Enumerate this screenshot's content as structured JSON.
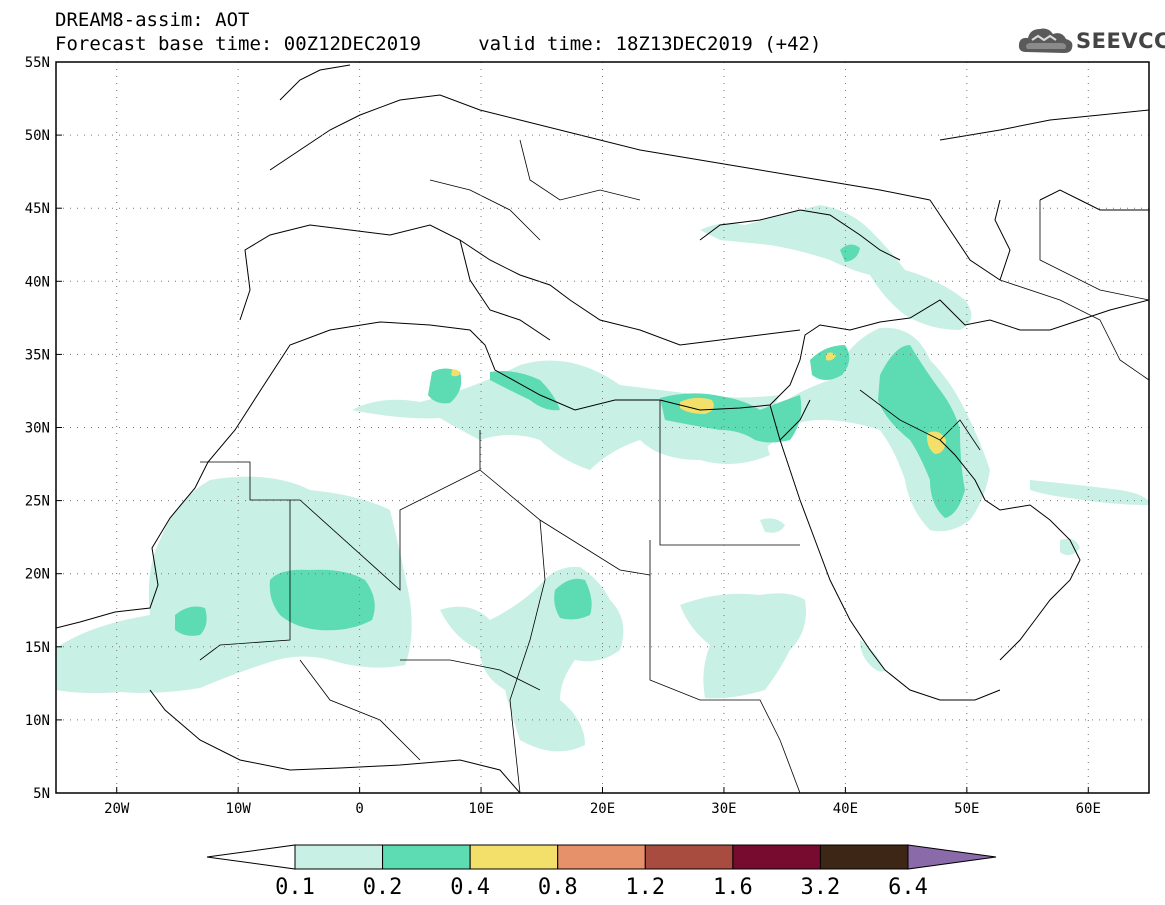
{
  "header": {
    "line1": "DREAM8-assim: AOT",
    "line2": "Forecast base time: 00Z12DEC2019     valid time: 18Z13DEC2019 (+42)"
  },
  "logo": {
    "text": "SEEVCCC",
    "icon": "cloud-icon"
  },
  "map": {
    "lon_range": [
      -25,
      65
    ],
    "lat_range": [
      5,
      55
    ],
    "grid": "dotted",
    "lat_ticks": [
      {
        "value": 55,
        "label": "55N"
      },
      {
        "value": 50,
        "label": "50N"
      },
      {
        "value": 45,
        "label": "45N"
      },
      {
        "value": 40,
        "label": "40N"
      },
      {
        "value": 35,
        "label": "35N"
      },
      {
        "value": 30,
        "label": "30N"
      },
      {
        "value": 25,
        "label": "25N"
      },
      {
        "value": 20,
        "label": "20N"
      },
      {
        "value": 15,
        "label": "15N"
      },
      {
        "value": 10,
        "label": "10N"
      },
      {
        "value": 5,
        "label": "5N"
      }
    ],
    "lon_ticks": [
      {
        "value": -20,
        "label": "20W"
      },
      {
        "value": -10,
        "label": "10W"
      },
      {
        "value": 0,
        "label": "0"
      },
      {
        "value": 10,
        "label": "10E"
      },
      {
        "value": 20,
        "label": "20E"
      },
      {
        "value": 30,
        "label": "30E"
      },
      {
        "value": 40,
        "label": "40E"
      },
      {
        "value": 50,
        "label": "50E"
      },
      {
        "value": 60,
        "label": "60E"
      }
    ]
  },
  "colorbar": {
    "colors": [
      "#ffffff",
      "#c8f0e4",
      "#5ddbb2",
      "#f3e06a",
      "#e69169",
      "#a94c40",
      "#770b2f",
      "#3d2616",
      "#8a6aa8"
    ],
    "labels": [
      "0.1",
      "0.2",
      "0.4",
      "0.8",
      "1.2",
      "1.6",
      "3.2",
      "6.4"
    ]
  }
}
